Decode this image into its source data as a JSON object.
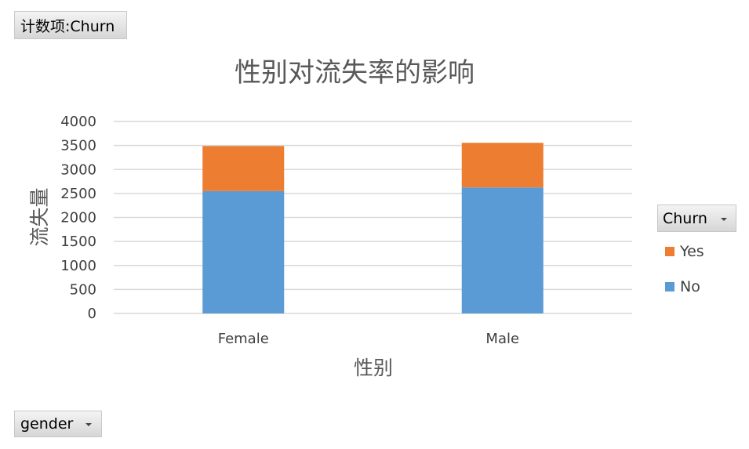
{
  "value_field": {
    "label": "计数项:Churn"
  },
  "row_field": {
    "label": "gender"
  },
  "legend_field": {
    "label": "Churn"
  },
  "chart_data": {
    "type": "bar",
    "stacked": true,
    "title": "性别对流失率的影响",
    "xlabel": "性别",
    "ylabel": "流失量",
    "categories": [
      "Female",
      "Male"
    ],
    "series": [
      {
        "name": "No",
        "values": [
          2549,
          2625
        ],
        "color": "#5b9bd5"
      },
      {
        "name": "Yes",
        "values": [
          939,
          930
        ],
        "color": "#ed7d31"
      }
    ],
    "ylim": [
      0,
      4000
    ],
    "yticks": [
      0,
      500,
      1000,
      1500,
      2000,
      2500,
      3000,
      3500,
      4000
    ],
    "grid": true,
    "legend_position": "right"
  }
}
